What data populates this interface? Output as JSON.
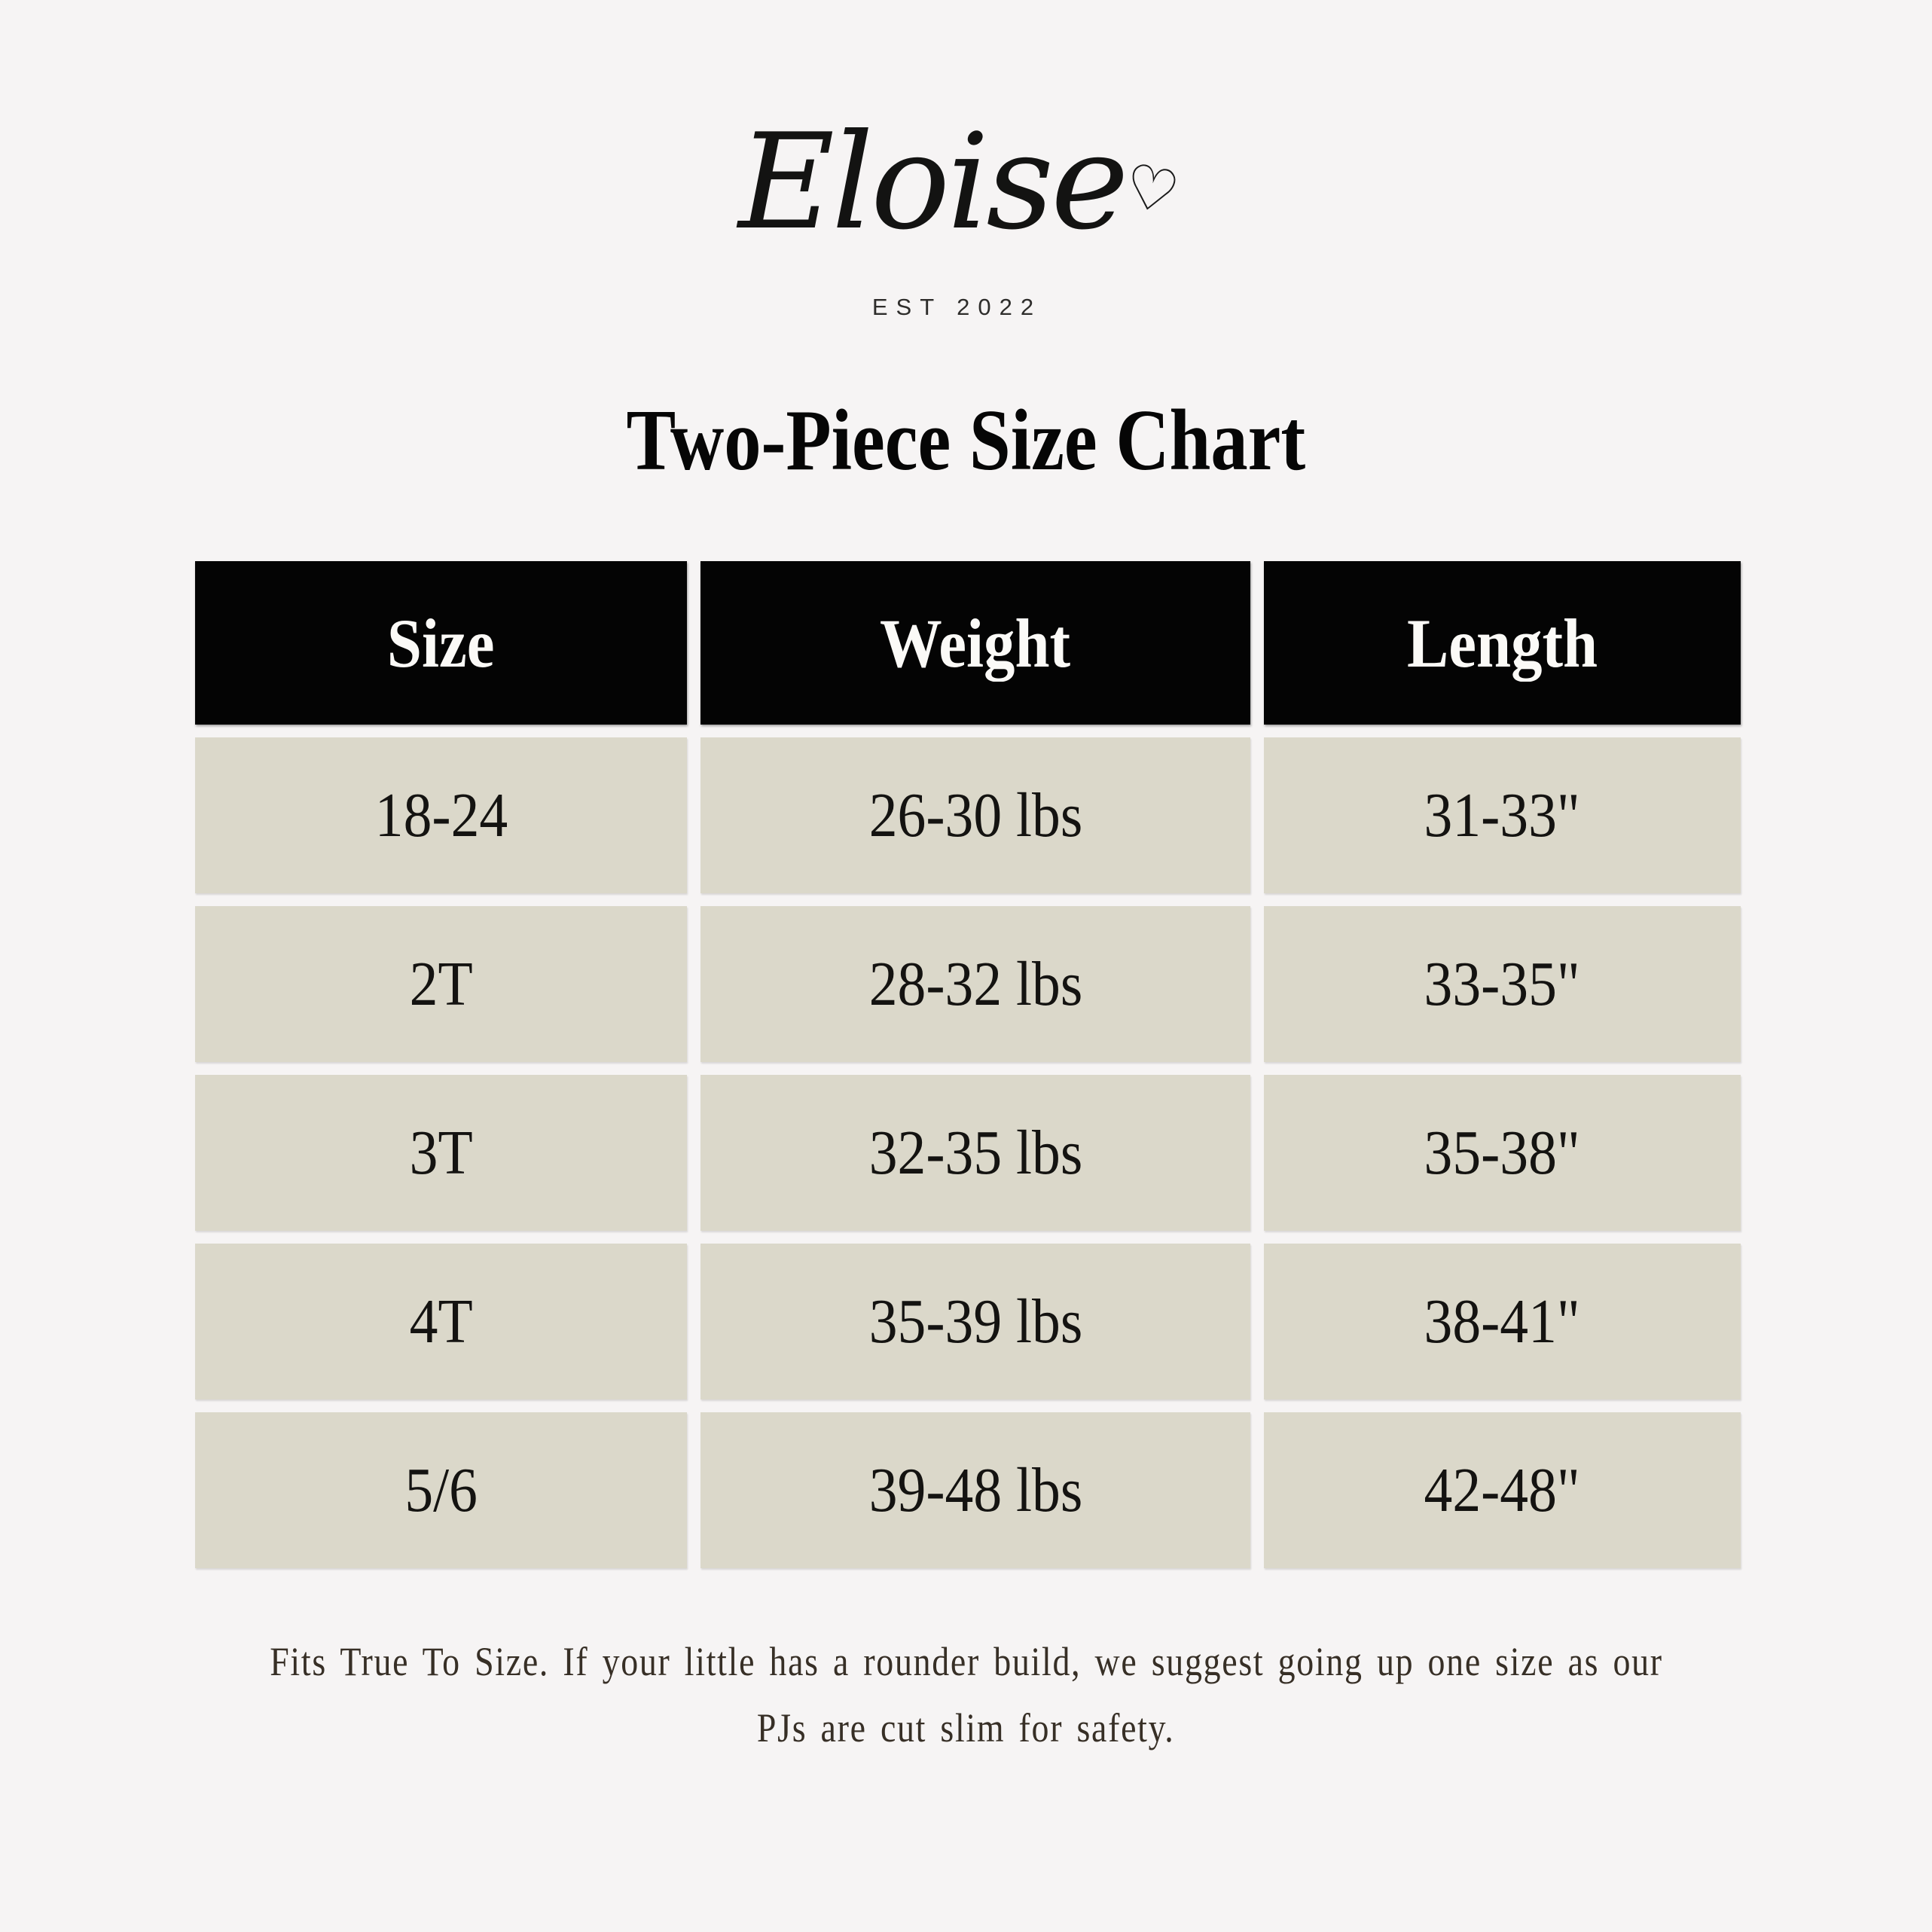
{
  "brand": {
    "name": "Eloise",
    "established": "EST 2022",
    "heart_icon": "♡"
  },
  "page": {
    "title": "Two-Piece Size Chart",
    "background_color": "#f6f4f4"
  },
  "chart_data": {
    "type": "table",
    "title": "Two-Piece Size Chart",
    "columns": [
      "Size",
      "Weight",
      "Length"
    ],
    "rows": [
      [
        "18-24",
        "26-30 lbs",
        "31-33\""
      ],
      [
        "2T",
        "28-32 lbs",
        "33-35\""
      ],
      [
        "3T",
        "32-35 lbs",
        "35-38\""
      ],
      [
        "4T",
        "35-39 lbs",
        "38-41\""
      ],
      [
        "5/6",
        "39-48 lbs",
        "42-48\""
      ]
    ],
    "style": {
      "header_bg": "#040404",
      "header_text_color": "#fbfaf7",
      "row_bg": "#dbd8ca",
      "row_text_color": "#141311",
      "grid_gap_color": "#f6f4f4"
    }
  },
  "footnote": {
    "text": "Fits True To Size. If your little has a rounder build, we suggest going up one size as our PJs are cut slim for safety.",
    "lines": [
      "Fits True To Size. If your little has a rounder build, we suggest going up one size as our",
      "PJs are cut slim for safety."
    ]
  }
}
